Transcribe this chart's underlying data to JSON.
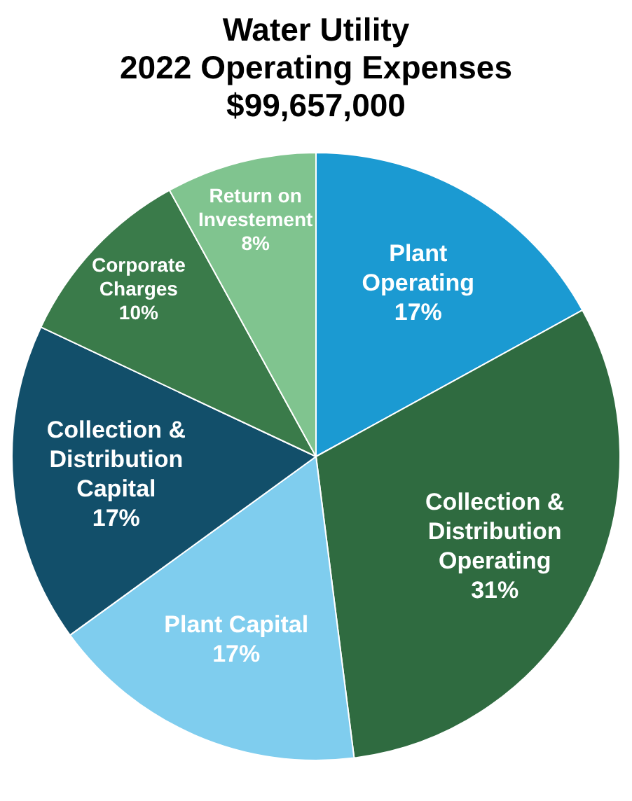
{
  "chart_data": {
    "type": "pie",
    "title": "Water Utility\n2022 Operating Expenses\n$99,657,000",
    "categories": [
      "Plant Operating",
      "Collection & Distribution Operating",
      "Plant Capital",
      "Collection & Distribution Capital",
      "Corporate Charges",
      "Return on Investement"
    ],
    "values": [
      17,
      31,
      17,
      17,
      10,
      8
    ],
    "value_labels": [
      "17%",
      "31%",
      "17%",
      "17%",
      "10%",
      "8%"
    ],
    "colors": [
      "#1b9ad2",
      "#2f6b40",
      "#7fcdee",
      "#124f6a",
      "#3a7b4a",
      "#80c48f"
    ],
    "legend": false
  }
}
